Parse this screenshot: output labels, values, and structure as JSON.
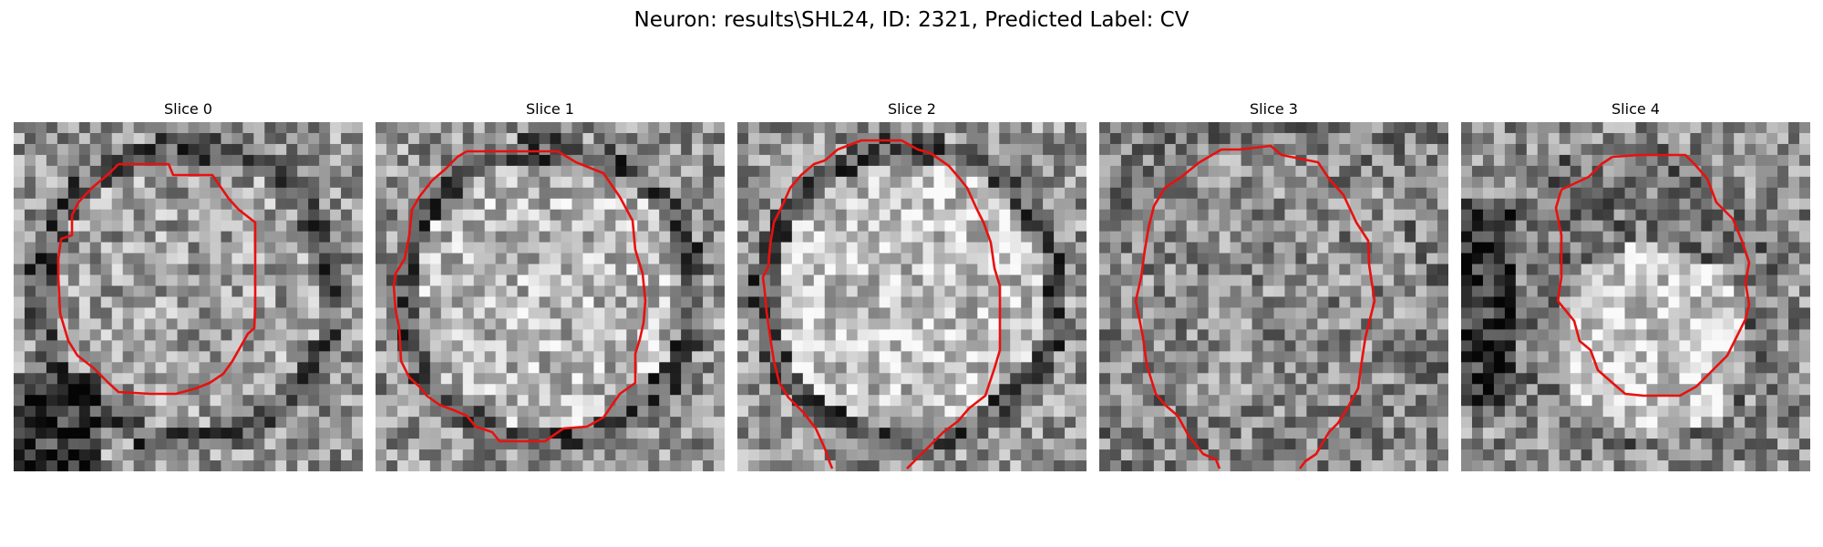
{
  "figure": {
    "title": "Neuron: results\\SHL24, ID: 2321, Predicted Label: CV",
    "contour_color": "#e8110f"
  },
  "slices": [
    {
      "label": "Slice 0",
      "seed": 11,
      "style": "ring",
      "bright_center": 0.62,
      "contour": "c0"
    },
    {
      "label": "Slice 1",
      "seed": 23,
      "style": "ring",
      "bright_center": 0.72,
      "contour": "c1"
    },
    {
      "label": "Slice 2",
      "seed": 37,
      "style": "ring",
      "bright_center": 0.76,
      "contour": "c2"
    },
    {
      "label": "Slice 3",
      "seed": 49,
      "style": "noisy",
      "bright_center": 0.55,
      "contour": "c3"
    },
    {
      "label": "Slice 4",
      "seed": 61,
      "style": "blob",
      "bright_center": 0.66,
      "contour": "c4"
    }
  ]
}
